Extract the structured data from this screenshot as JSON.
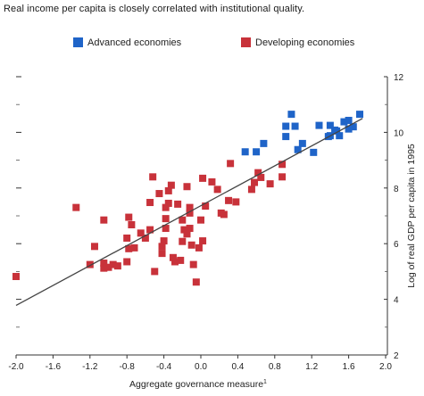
{
  "title": "Real income per capita is closely correlated with institutional quality.",
  "chart_data": {
    "type": "scatter",
    "title": "Real income per capita is closely correlated with institutional quality.",
    "xlabel": "Aggregate governance measure",
    "xlabel_superscript": "1",
    "ylabel": "Log of real GDP per capita in 1995",
    "xlim": [
      -2.0,
      2.0
    ],
    "ylim": [
      2,
      12
    ],
    "x_ticks": [
      "-2.0",
      "-1.6",
      "-1.2",
      "-0.8",
      "-0.4",
      "0.0",
      "0.4",
      "0.8",
      "1.2",
      "1.6",
      "2.0"
    ],
    "y_ticks": [
      "2",
      "4",
      "6",
      "8",
      "10",
      "12"
    ],
    "y_axis_side": "right",
    "legend_placement": "top",
    "grid": false,
    "trend_line": {
      "x": [
        -2.0,
        1.75
      ],
      "y": [
        3.78,
        10.5
      ]
    },
    "series": [
      {
        "name": "Advanced economies",
        "color": "#1f64c8",
        "points": [
          [
            0.98,
            10.65
          ],
          [
            1.72,
            10.65
          ],
          [
            0.92,
            10.22
          ],
          [
            1.02,
            10.22
          ],
          [
            1.28,
            10.25
          ],
          [
            1.4,
            10.25
          ],
          [
            1.55,
            10.38
          ],
          [
            1.6,
            10.43
          ],
          [
            1.65,
            10.2
          ],
          [
            1.45,
            10.08
          ],
          [
            1.5,
            9.88
          ],
          [
            1.4,
            9.88
          ],
          [
            1.6,
            10.12
          ],
          [
            1.38,
            9.85
          ],
          [
            0.92,
            9.85
          ],
          [
            1.1,
            9.6
          ],
          [
            0.68,
            9.6
          ],
          [
            0.6,
            9.3
          ],
          [
            0.48,
            9.3
          ],
          [
            1.05,
            9.38
          ],
          [
            1.22,
            9.28
          ],
          [
            1.47,
            10.05
          ]
        ]
      },
      {
        "name": "Developing economies",
        "color": "#c8323a",
        "points": [
          [
            -2.0,
            4.82
          ],
          [
            -1.35,
            7.3
          ],
          [
            -1.05,
            6.85
          ],
          [
            -1.15,
            5.9
          ],
          [
            -1.2,
            5.25
          ],
          [
            -1.05,
            5.3
          ],
          [
            -1.05,
            5.12
          ],
          [
            -1.0,
            5.15
          ],
          [
            -0.95,
            5.25
          ],
          [
            -0.8,
            5.35
          ],
          [
            -0.78,
            5.82
          ],
          [
            -0.8,
            6.2
          ],
          [
            -0.78,
            6.95
          ],
          [
            -0.75,
            6.68
          ],
          [
            -0.72,
            5.85
          ],
          [
            -0.6,
            6.2
          ],
          [
            -0.55,
            6.5
          ],
          [
            -0.55,
            7.48
          ],
          [
            -0.52,
            8.4
          ],
          [
            -0.5,
            5.0
          ],
          [
            -0.42,
            5.65
          ],
          [
            -0.42,
            5.9
          ],
          [
            -0.4,
            6.1
          ],
          [
            -0.38,
            6.55
          ],
          [
            -0.38,
            6.9
          ],
          [
            -0.38,
            7.3
          ],
          [
            -0.35,
            7.45
          ],
          [
            -0.35,
            7.9
          ],
          [
            -0.32,
            8.1
          ],
          [
            -0.3,
            5.5
          ],
          [
            -0.28,
            5.35
          ],
          [
            -0.22,
            5.4
          ],
          [
            -0.2,
            6.85
          ],
          [
            -0.15,
            6.35
          ],
          [
            -0.12,
            7.3
          ],
          [
            -0.1,
            5.95
          ],
          [
            -0.12,
            6.55
          ],
          [
            -0.12,
            7.1
          ],
          [
            -0.15,
            8.05
          ],
          [
            -0.08,
            5.25
          ],
          [
            -0.05,
            4.62
          ],
          [
            -0.02,
            5.85
          ],
          [
            0.02,
            6.1
          ],
          [
            0.0,
            6.85
          ],
          [
            0.05,
            7.35
          ],
          [
            0.02,
            8.35
          ],
          [
            0.12,
            8.22
          ],
          [
            0.18,
            7.95
          ],
          [
            0.22,
            7.1
          ],
          [
            0.25,
            7.05
          ],
          [
            0.3,
            7.55
          ],
          [
            0.38,
            7.5
          ],
          [
            0.32,
            8.88
          ],
          [
            0.55,
            7.95
          ],
          [
            0.58,
            8.2
          ],
          [
            0.62,
            8.55
          ],
          [
            0.65,
            8.38
          ],
          [
            0.75,
            8.15
          ],
          [
            0.88,
            8.85
          ],
          [
            0.88,
            8.4
          ],
          [
            -0.9,
            5.2
          ],
          [
            -0.65,
            6.38
          ],
          [
            -0.45,
            7.8
          ],
          [
            -0.25,
            7.42
          ],
          [
            -0.2,
            6.08
          ],
          [
            -0.18,
            6.5
          ]
        ]
      }
    ]
  }
}
